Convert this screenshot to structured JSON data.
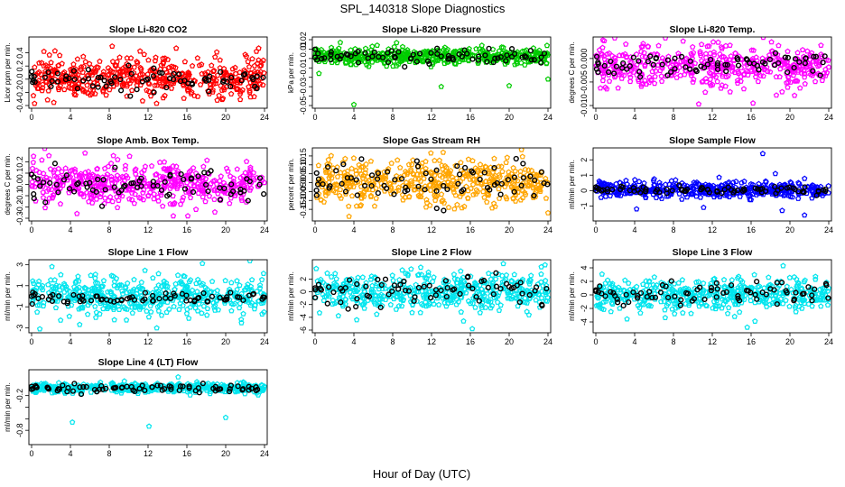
{
  "figure": {
    "title": "SPL_140318  Slope Diagnostics",
    "xlabel": "Hour of Day (UTC)"
  },
  "colors": {
    "hourly_mean": "#000000",
    "red": "#ff0000",
    "green": "#00cc00",
    "magenta": "#ff00ff",
    "orange": "#ffa500",
    "blue": "#0000ff",
    "cyan": "#00e5ee"
  },
  "chart_data": [
    {
      "type": "scatter",
      "title": "Slope Li-820 CO2",
      "ylabel": "Licor ppm per min.",
      "color": "#ff0000",
      "xlim": [
        0,
        24
      ],
      "xticks": [
        0,
        4,
        8,
        12,
        16,
        20,
        24
      ],
      "ylim": [
        -0.4,
        0.6
      ],
      "yticks": [
        -0.4,
        -0.2,
        0.0,
        0.2,
        0.4
      ],
      "ytick_labels": [
        "-0.4",
        "-0.2",
        "0.0",
        "0.2",
        "0.4"
      ],
      "series": [
        {
          "name": "samples",
          "center": 0.02,
          "spread": 0.15,
          "outliers": [
            [
              0.3,
              -0.37
            ],
            [
              2.9,
              0.36
            ],
            [
              8.3,
              0.5
            ],
            [
              14.9,
              0.47
            ],
            [
              17.1,
              0.32
            ],
            [
              23.4,
              0.47
            ],
            [
              21.5,
              -0.31
            ]
          ]
        },
        {
          "name": "hourly_mean",
          "center": 0.0,
          "spread": 0.1,
          "x": [
            0.5,
            1,
            2,
            3,
            4,
            5,
            6,
            7,
            8,
            9,
            10,
            11,
            12,
            13,
            14,
            15,
            16,
            17,
            18,
            19,
            20,
            21,
            22,
            23,
            24
          ]
        }
      ]
    },
    {
      "type": "scatter",
      "title": "Slope Li-820 Pressure",
      "ylabel": "kPa per min.",
      "color": "#00cc00",
      "xlim": [
        0,
        24
      ],
      "xticks": [
        0,
        4,
        8,
        12,
        16,
        20,
        24
      ],
      "ylim": [
        -0.05,
        0.02
      ],
      "yticks": [
        -0.05,
        -0.04,
        -0.03,
        -0.02,
        -0.01,
        0.0,
        0.01,
        0.02
      ],
      "ytick_labels": [
        "-0.05",
        "",
        "-0.03",
        "",
        "-0.01",
        "",
        "0.01",
        "0.02"
      ],
      "series": [
        {
          "name": "samples",
          "center": 0.002,
          "spread": 0.004,
          "outliers": [
            [
              4.0,
              -0.049
            ],
            [
              13.0,
              -0.03
            ],
            [
              20.0,
              -0.029
            ],
            [
              2.6,
              0.017
            ],
            [
              24.0,
              -0.022
            ],
            [
              0.4,
              -0.016
            ],
            [
              6.4,
              0.014
            ]
          ]
        },
        {
          "name": "hourly_mean",
          "center": 0.002,
          "spread": 0.004,
          "x": [
            0.5,
            1,
            2,
            3,
            4,
            5,
            6,
            7,
            8,
            9,
            10,
            11,
            12,
            13,
            14,
            15,
            16,
            17,
            18,
            19,
            20,
            21,
            22,
            23,
            24
          ]
        }
      ]
    },
    {
      "type": "scatter",
      "title": "Slope Li-820 Temp.",
      "ylabel": "degrees C per min.",
      "color": "#ff00ff",
      "xlim": [
        0,
        24
      ],
      "xticks": [
        0,
        4,
        8,
        12,
        16,
        20,
        24
      ],
      "ylim": [
        -0.01,
        0.004
      ],
      "yticks": [
        -0.01,
        -0.005,
        0.0
      ],
      "ytick_labels": [
        "-0.010",
        "-0.005",
        "0.000"
      ],
      "series": [
        {
          "name": "samples",
          "center": -0.0015,
          "spread": 0.0022,
          "outliers": [
            [
              10.6,
              -0.0097
            ],
            [
              16.2,
              -0.0095
            ],
            [
              12.1,
              0.0035
            ],
            [
              18.1,
              0.0035
            ],
            [
              23.2,
              0.0028
            ]
          ]
        },
        {
          "name": "hourly_mean",
          "center": -0.0012,
          "spread": 0.0012,
          "x": [
            0.5,
            1,
            2,
            3,
            4,
            5,
            6,
            7,
            8,
            9,
            10,
            11,
            12,
            13,
            14,
            15,
            16,
            17,
            18,
            19,
            20,
            21,
            22,
            23,
            24
          ]
        }
      ]
    },
    {
      "type": "scatter",
      "title": "Slope Amb. Box Temp.",
      "ylabel": "degrees C per min.",
      "color": "#ff00ff",
      "xlim": [
        0,
        24
      ],
      "xticks": [
        0,
        4,
        8,
        12,
        16,
        20,
        24
      ],
      "ylim": [
        -0.3,
        0.3
      ],
      "yticks": [
        -0.3,
        -0.2,
        -0.1,
        0.0,
        0.1,
        0.2
      ],
      "ytick_labels": [
        "-0.3",
        "-0.2",
        "-0.1",
        "0.0",
        "0.1",
        "0.2"
      ],
      "series": [
        {
          "name": "samples",
          "center": 0.0,
          "spread": 0.095,
          "outliers": [
            [
              10.1,
              0.25
            ],
            [
              14.6,
              -0.28
            ],
            [
              16.1,
              -0.28
            ],
            [
              0.2,
              0.25
            ]
          ]
        },
        {
          "name": "hourly_mean",
          "center": 0.0,
          "spread": 0.07,
          "x": [
            0.5,
            1,
            2,
            3,
            4,
            5,
            6,
            7,
            8,
            9,
            10,
            11,
            12,
            13,
            14,
            15,
            16,
            17,
            18,
            19,
            20,
            21,
            22,
            23,
            24
          ]
        }
      ]
    },
    {
      "type": "scatter",
      "title": "Slope Gas Stream RH",
      "ylabel": "percent per min.",
      "color": "#ffa500",
      "xlim": [
        0,
        24
      ],
      "xticks": [
        0,
        4,
        8,
        12,
        16,
        20,
        24
      ],
      "ylim": [
        -0.2,
        0.18
      ],
      "yticks": [
        -0.15,
        -0.1,
        -0.05,
        0.0,
        0.05,
        0.1,
        0.15
      ],
      "ytick_labels": [
        "-0.15",
        "-0.10",
        "-0.05",
        "0.00",
        "0.05",
        "0.10",
        "0.15"
      ],
      "series": [
        {
          "name": "samples",
          "center": 0.0,
          "spread": 0.06,
          "outliers": [
            [
              13.2,
              0.17
            ],
            [
              3.5,
              -0.19
            ],
            [
              24.0,
              -0.17
            ]
          ]
        },
        {
          "name": "hourly_mean",
          "center": 0.0,
          "spread": 0.06,
          "x": [
            0.5,
            1,
            2,
            3,
            4,
            5,
            6,
            7,
            8,
            9,
            10,
            11,
            12,
            13,
            14,
            15,
            16,
            17,
            18,
            19,
            20,
            21,
            22,
            23,
            24
          ]
        }
      ]
    },
    {
      "type": "scatter",
      "title": "Slope Sample Flow",
      "ylabel": "ml/min per min.",
      "color": "#0000ff",
      "xlim": [
        0,
        24
      ],
      "xticks": [
        0,
        4,
        8,
        12,
        16,
        20,
        24
      ],
      "ylim": [
        -1.8,
        2.6
      ],
      "yticks": [
        -1,
        0,
        1,
        2
      ],
      "ytick_labels": [
        "-1",
        "0",
        "1",
        "2"
      ],
      "series": [
        {
          "name": "samples",
          "center": 0.05,
          "spread": 0.25,
          "outliers": [
            [
              17.2,
              2.4
            ],
            [
              21.5,
              -1.6
            ],
            [
              19.2,
              -1.3
            ],
            [
              11.1,
              -1.1
            ],
            [
              4.2,
              -1.2
            ],
            [
              18.5,
              1.1
            ]
          ]
        },
        {
          "name": "hourly_mean",
          "center": 0.05,
          "spread": 0.12,
          "x": [
            0.5,
            1,
            2,
            3,
            4,
            5,
            6,
            7,
            8,
            9,
            10,
            11,
            12,
            13,
            14,
            15,
            16,
            17,
            18,
            19,
            20,
            21,
            22,
            23,
            24
          ]
        }
      ]
    },
    {
      "type": "scatter",
      "title": "Slope Line 1 Flow",
      "ylabel": "ml/min per min.",
      "color": "#00e5ee",
      "xlim": [
        0,
        24
      ],
      "xticks": [
        0,
        4,
        8,
        12,
        16,
        20,
        24
      ],
      "ylim": [
        -3.2,
        3.2
      ],
      "yticks": [
        -3,
        -1,
        1,
        3
      ],
      "ytick_labels": [
        "-3",
        "-1",
        "1",
        "3"
      ],
      "series": [
        {
          "name": "samples",
          "center": 0.0,
          "spread": 0.9,
          "outliers": [
            [
              17.6,
              3.1
            ],
            [
              12.9,
              -3.0
            ],
            [
              2.1,
              2.8
            ],
            [
              21.6,
              -2.2
            ]
          ]
        },
        {
          "name": "hourly_mean",
          "center": -0.2,
          "spread": 0.25,
          "x": [
            0.5,
            1,
            2,
            3,
            4,
            5,
            6,
            7,
            8,
            9,
            10,
            11,
            12,
            13,
            14,
            15,
            16,
            17,
            18,
            19,
            20,
            21,
            22,
            23,
            24
          ]
        }
      ]
    },
    {
      "type": "scatter",
      "title": "Slope Line 2 Flow",
      "ylabel": "ml/min per min.",
      "color": "#00e5ee",
      "xlim": [
        0,
        24
      ],
      "xticks": [
        0,
        4,
        8,
        12,
        16,
        20,
        24
      ],
      "ylim": [
        -6,
        4.6
      ],
      "yticks": [
        -6,
        -4,
        -2,
        0,
        2
      ],
      "ytick_labels": [
        "-6",
        "-4",
        "-2",
        "0",
        "2"
      ],
      "series": [
        {
          "name": "samples",
          "center": 0.0,
          "spread": 1.4,
          "outliers": [
            [
              16.2,
              -5.8
            ],
            [
              19.4,
              4.4
            ],
            [
              23.7,
              4.2
            ],
            [
              15.3,
              -4.6
            ]
          ]
        },
        {
          "name": "hourly_mean",
          "center": 0.3,
          "spread": 1.2,
          "x": [
            0.5,
            1,
            2,
            3,
            4,
            5,
            6,
            7,
            8,
            9,
            10,
            11,
            12,
            13,
            14,
            15,
            16,
            17,
            18,
            19,
            20,
            21,
            22,
            23,
            24
          ]
        }
      ]
    },
    {
      "type": "scatter",
      "title": "Slope Line 3 Flow",
      "ylabel": "ml/min per min.",
      "color": "#00e5ee",
      "xlim": [
        0,
        24
      ],
      "xticks": [
        0,
        4,
        8,
        12,
        16,
        20,
        24
      ],
      "ylim": [
        -5.2,
        4.8
      ],
      "yticks": [
        -4,
        -2,
        0,
        2,
        4
      ],
      "ytick_labels": [
        "-4",
        "-2",
        "0",
        "2",
        "4"
      ],
      "series": [
        {
          "name": "samples",
          "center": 0.0,
          "spread": 1.1,
          "outliers": [
            [
              15.6,
              -4.8
            ],
            [
              16.4,
              -3.9
            ],
            [
              19.3,
              4.3
            ],
            [
              14.3,
              -3.2
            ]
          ]
        },
        {
          "name": "hourly_mean",
          "center": 0.2,
          "spread": 1.0,
          "x": [
            0.5,
            1,
            2,
            3,
            4,
            5,
            6,
            7,
            8,
            9,
            10,
            11,
            12,
            13,
            14,
            15,
            16,
            17,
            18,
            19,
            20,
            21,
            22,
            23,
            24
          ]
        }
      ]
    },
    {
      "type": "scatter",
      "title": "Slope Line 4 (LT) Flow",
      "ylabel": "ml/min per min.",
      "color": "#00e5ee",
      "xlim": [
        0,
        24
      ],
      "xticks": [
        0,
        4,
        8,
        12,
        16,
        20,
        24
      ],
      "ylim": [
        -1.0,
        0.2
      ],
      "yticks": [
        -0.8,
        -0.6,
        -0.4,
        -0.2
      ],
      "ytick_labels": [
        "-0.8",
        "",
        "",
        "-0.2"
      ],
      "series": [
        {
          "name": "samples",
          "center": -0.07,
          "spread": 0.04,
          "outliers": [
            [
              4.2,
              -0.66
            ],
            [
              12.1,
              -0.73
            ],
            [
              20.0,
              -0.58
            ],
            [
              15.1,
              0.12
            ],
            [
              2.8,
              0.02
            ]
          ]
        },
        {
          "name": "hourly_mean",
          "center": -0.07,
          "spread": 0.04,
          "x": [
            0.5,
            1,
            2,
            3,
            4,
            5,
            6,
            7,
            8,
            9,
            10,
            11,
            12,
            13,
            14,
            15,
            16,
            17,
            18,
            19,
            20,
            21,
            22,
            23,
            24
          ]
        }
      ]
    }
  ]
}
